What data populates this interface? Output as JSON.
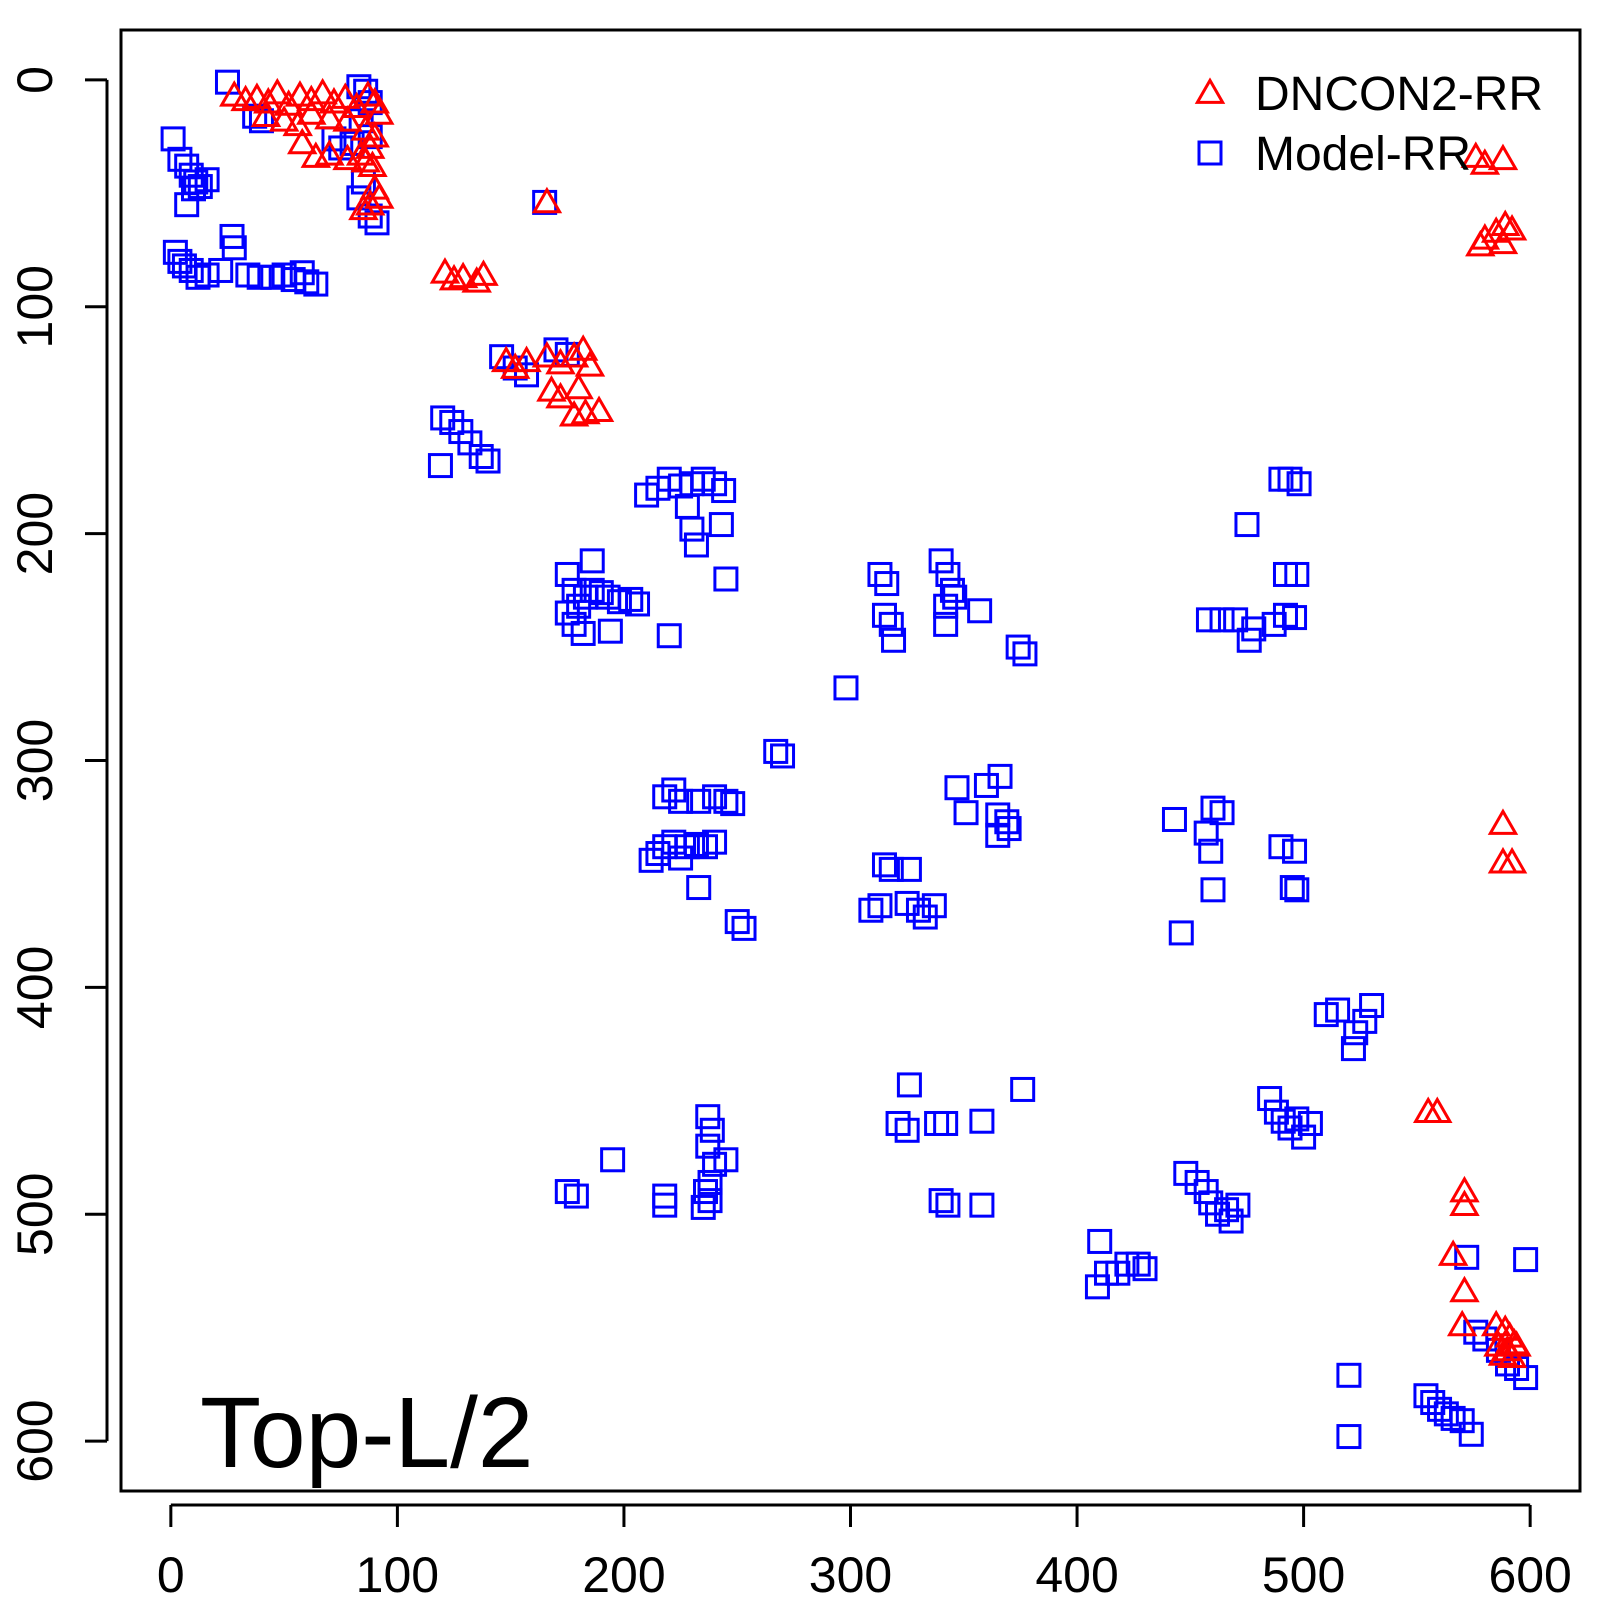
{
  "chart_data": {
    "type": "scatter",
    "title": "",
    "xlabel": "",
    "ylabel": "",
    "xlim": [
      -22,
      622
    ],
    "ylim": [
      -22,
      622
    ],
    "y_inverted": true,
    "x_ticks": [
      0,
      100,
      200,
      300,
      400,
      500,
      600
    ],
    "y_ticks": [
      0,
      100,
      200,
      300,
      400,
      500,
      600
    ],
    "annotation": "Top-L/2",
    "legend_position": "top-right",
    "series": [
      {
        "name": "DNCON2-RR",
        "marker": "triangle-open",
        "color": "#ff0000",
        "points": [
          [
            28,
            7
          ],
          [
            33,
            9
          ],
          [
            38,
            8
          ],
          [
            43,
            10
          ],
          [
            47,
            6
          ],
          [
            52,
            11
          ],
          [
            57,
            7
          ],
          [
            62,
            9
          ],
          [
            67,
            6
          ],
          [
            72,
            10
          ],
          [
            77,
            8
          ],
          [
            82,
            12
          ],
          [
            87,
            7
          ],
          [
            90,
            10
          ],
          [
            92,
            15
          ],
          [
            42,
            16
          ],
          [
            50,
            18
          ],
          [
            56,
            20
          ],
          [
            62,
            15
          ],
          [
            70,
            17
          ],
          [
            78,
            18
          ],
          [
            86,
            22
          ],
          [
            90,
            25
          ],
          [
            88,
            30
          ],
          [
            84,
            33
          ],
          [
            78,
            35
          ],
          [
            70,
            33
          ],
          [
            64,
            34
          ],
          [
            58,
            28
          ],
          [
            86,
            36
          ],
          [
            89,
            38
          ],
          [
            90,
            48
          ],
          [
            92,
            52
          ],
          [
            88,
            55
          ],
          [
            85,
            57
          ],
          [
            166,
            54
          ],
          [
            121,
            85
          ],
          [
            125,
            88
          ],
          [
            129,
            87
          ],
          [
            135,
            89
          ],
          [
            138,
            86
          ],
          [
            148,
            124
          ],
          [
            152,
            127
          ],
          [
            157,
            124
          ],
          [
            166,
            122
          ],
          [
            172,
            125
          ],
          [
            178,
            122
          ],
          [
            182,
            119
          ],
          [
            185,
            126
          ],
          [
            168,
            137
          ],
          [
            172,
            140
          ],
          [
            180,
            136
          ],
          [
            178,
            148
          ],
          [
            183,
            147
          ],
          [
            189,
            146
          ],
          [
            576,
            34
          ],
          [
            580,
            37
          ],
          [
            588,
            35
          ],
          [
            580,
            70
          ],
          [
            585,
            67
          ],
          [
            589,
            64
          ],
          [
            592,
            66
          ],
          [
            588,
            72
          ],
          [
            578,
            73
          ],
          [
            588,
            328
          ],
          [
            588,
            345
          ],
          [
            592,
            345
          ],
          [
            555,
            455
          ],
          [
            559,
            455
          ],
          [
            571,
            490
          ],
          [
            571,
            496
          ],
          [
            566,
            518
          ],
          [
            571,
            534
          ],
          [
            570,
            549
          ],
          [
            585,
            549
          ],
          [
            589,
            551
          ],
          [
            591,
            554
          ],
          [
            593,
            557
          ],
          [
            586,
            558
          ],
          [
            588,
            562
          ],
          [
            590,
            560
          ],
          [
            592,
            563
          ],
          [
            594,
            558
          ]
        ]
      },
      {
        "name": "Model-RR",
        "marker": "square-open",
        "color": "#0000ff",
        "points": [
          [
            25,
            1
          ],
          [
            37,
            16
          ],
          [
            40,
            18
          ],
          [
            83,
            3
          ],
          [
            86,
            5
          ],
          [
            88,
            10
          ],
          [
            84,
            18
          ],
          [
            88,
            25
          ],
          [
            80,
            28
          ],
          [
            75,
            30
          ],
          [
            72,
            26
          ],
          [
            85,
            45
          ],
          [
            88,
            60
          ],
          [
            91,
            63
          ],
          [
            83,
            52
          ],
          [
            1,
            26
          ],
          [
            4,
            35
          ],
          [
            7,
            38
          ],
          [
            9,
            42
          ],
          [
            11,
            45
          ],
          [
            13,
            47
          ],
          [
            16,
            44
          ],
          [
            7,
            55
          ],
          [
            10,
            48
          ],
          [
            2,
            76
          ],
          [
            4,
            80
          ],
          [
            6,
            82
          ],
          [
            9,
            84
          ],
          [
            12,
            87
          ],
          [
            16,
            86
          ],
          [
            22,
            84
          ],
          [
            27,
            69
          ],
          [
            28,
            74
          ],
          [
            34,
            86
          ],
          [
            39,
            87
          ],
          [
            45,
            87
          ],
          [
            50,
            86
          ],
          [
            54,
            88
          ],
          [
            58,
            85
          ],
          [
            60,
            89
          ],
          [
            64,
            90
          ],
          [
            165,
            54
          ],
          [
            146,
            122
          ],
          [
            152,
            127
          ],
          [
            157,
            130
          ],
          [
            170,
            119
          ],
          [
            175,
            121
          ],
          [
            120,
            149
          ],
          [
            124,
            151
          ],
          [
            128,
            155
          ],
          [
            132,
            160
          ],
          [
            119,
            170
          ],
          [
            137,
            166
          ],
          [
            140,
            168
          ],
          [
            210,
            183
          ],
          [
            215,
            180
          ],
          [
            220,
            176
          ],
          [
            225,
            179
          ],
          [
            230,
            178
          ],
          [
            235,
            176
          ],
          [
            240,
            178
          ],
          [
            244,
            181
          ],
          [
            228,
            188
          ],
          [
            230,
            198
          ],
          [
            232,
            205
          ],
          [
            243,
            196
          ],
          [
            245,
            220
          ],
          [
            175,
            218
          ],
          [
            178,
            225
          ],
          [
            180,
            232
          ],
          [
            183,
            228
          ],
          [
            186,
            225
          ],
          [
            190,
            226
          ],
          [
            193,
            228
          ],
          [
            198,
            230
          ],
          [
            203,
            229
          ],
          [
            206,
            231
          ],
          [
            175,
            235
          ],
          [
            178,
            240
          ],
          [
            182,
            244
          ],
          [
            186,
            212
          ],
          [
            194,
            243
          ],
          [
            220,
            245
          ],
          [
            313,
            218
          ],
          [
            316,
            222
          ],
          [
            315,
            236
          ],
          [
            318,
            240
          ],
          [
            319,
            247
          ],
          [
            340,
            212
          ],
          [
            343,
            218
          ],
          [
            345,
            225
          ],
          [
            342,
            232
          ],
          [
            346,
            228
          ],
          [
            342,
            240
          ],
          [
            357,
            234
          ],
          [
            374,
            250
          ],
          [
            377,
            253
          ],
          [
            298,
            268
          ],
          [
            267,
            296
          ],
          [
            270,
            298
          ],
          [
            218,
            316
          ],
          [
            222,
            313
          ],
          [
            225,
            318
          ],
          [
            233,
            318
          ],
          [
            240,
            316
          ],
          [
            245,
            318
          ],
          [
            248,
            319
          ],
          [
            212,
            344
          ],
          [
            215,
            341
          ],
          [
            218,
            338
          ],
          [
            222,
            336
          ],
          [
            225,
            343
          ],
          [
            228,
            338
          ],
          [
            232,
            337
          ],
          [
            236,
            338
          ],
          [
            240,
            336
          ],
          [
            233,
            356
          ],
          [
            250,
            371
          ],
          [
            253,
            374
          ],
          [
            315,
            346
          ],
          [
            318,
            348
          ],
          [
            326,
            348
          ],
          [
            309,
            366
          ],
          [
            313,
            364
          ],
          [
            325,
            363
          ],
          [
            330,
            366
          ],
          [
            333,
            369
          ],
          [
            337,
            364
          ],
          [
            347,
            312
          ],
          [
            351,
            323
          ],
          [
            360,
            311
          ],
          [
            366,
            307
          ],
          [
            365,
            324
          ],
          [
            369,
            327
          ],
          [
            365,
            333
          ],
          [
            370,
            330
          ],
          [
            475,
            196
          ],
          [
            490,
            176
          ],
          [
            494,
            176
          ],
          [
            498,
            178
          ],
          [
            492,
            218
          ],
          [
            497,
            218
          ],
          [
            492,
            236
          ],
          [
            496,
            237
          ],
          [
            487,
            240
          ],
          [
            458,
            238
          ],
          [
            464,
            238
          ],
          [
            470,
            238
          ],
          [
            478,
            242
          ],
          [
            476,
            247
          ],
          [
            443,
            326
          ],
          [
            460,
            321
          ],
          [
            464,
            323
          ],
          [
            457,
            332
          ],
          [
            459,
            340
          ],
          [
            460,
            357
          ],
          [
            446,
            376
          ],
          [
            490,
            338
          ],
          [
            496,
            340
          ],
          [
            495,
            356
          ],
          [
            497,
            357
          ],
          [
            510,
            412
          ],
          [
            515,
            410
          ],
          [
            523,
            420
          ],
          [
            527,
            415
          ],
          [
            530,
            408
          ],
          [
            522,
            427
          ],
          [
            326,
            443
          ],
          [
            321,
            460
          ],
          [
            325,
            463
          ],
          [
            338,
            460
          ],
          [
            342,
            460
          ],
          [
            358,
            459
          ],
          [
            376,
            445
          ],
          [
            340,
            494
          ],
          [
            343,
            496
          ],
          [
            358,
            496
          ],
          [
            175,
            490
          ],
          [
            179,
            492
          ],
          [
            195,
            476
          ],
          [
            218,
            492
          ],
          [
            218,
            496
          ],
          [
            237,
            457
          ],
          [
            239,
            463
          ],
          [
            237,
            470
          ],
          [
            240,
            478
          ],
          [
            245,
            476
          ],
          [
            236,
            490
          ],
          [
            238,
            494
          ],
          [
            235,
            497
          ],
          [
            238,
            486
          ],
          [
            485,
            449
          ],
          [
            488,
            455
          ],
          [
            491,
            459
          ],
          [
            494,
            462
          ],
          [
            497,
            458
          ],
          [
            500,
            466
          ],
          [
            503,
            460
          ],
          [
            448,
            482
          ],
          [
            453,
            486
          ],
          [
            457,
            490
          ],
          [
            459,
            495
          ],
          [
            462,
            500
          ],
          [
            466,
            498
          ],
          [
            471,
            496
          ],
          [
            468,
            503
          ],
          [
            410,
            512
          ],
          [
            413,
            526
          ],
          [
            409,
            532
          ],
          [
            418,
            526
          ],
          [
            422,
            522
          ],
          [
            427,
            522
          ],
          [
            430,
            524
          ],
          [
            572,
            519
          ],
          [
            576,
            552
          ],
          [
            580,
            555
          ],
          [
            586,
            560
          ],
          [
            590,
            566
          ],
          [
            594,
            568
          ],
          [
            598,
            520
          ],
          [
            598,
            572
          ],
          [
            520,
            571
          ],
          [
            520,
            598
          ],
          [
            554,
            580
          ],
          [
            557,
            583
          ],
          [
            560,
            586
          ],
          [
            563,
            588
          ],
          [
            566,
            590
          ],
          [
            570,
            591
          ],
          [
            574,
            597
          ]
        ]
      }
    ]
  }
}
